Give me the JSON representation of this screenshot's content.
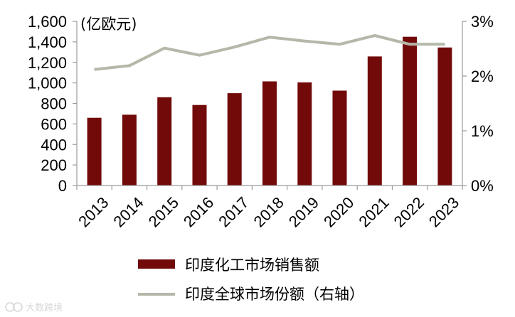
{
  "chart_data": {
    "type": "bar+line",
    "unit_label": "(亿欧元)",
    "categories": [
      "2013",
      "2014",
      "2015",
      "2016",
      "2017",
      "2018",
      "2019",
      "2020",
      "2021",
      "2022",
      "2023"
    ],
    "series": [
      {
        "name": "印度化工市场销售额",
        "type": "bar",
        "axis": "left",
        "values": [
          660,
          690,
          860,
          785,
          900,
          1015,
          1005,
          925,
          1258,
          1450,
          1345
        ]
      },
      {
        "name": "印度全球市场份额（右轴）",
        "type": "line",
        "axis": "right",
        "values": [
          2.12,
          2.19,
          2.51,
          2.38,
          2.53,
          2.71,
          2.64,
          2.58,
          2.74,
          2.58,
          2.58
        ]
      }
    ],
    "left_axis": {
      "min": 0,
      "max": 1600,
      "ticks": [
        0,
        200,
        400,
        600,
        800,
        1000,
        1200,
        1400,
        1600
      ],
      "tick_labels": [
        "0",
        "200",
        "400",
        "600",
        "800",
        "1,000",
        "1,200",
        "1,400",
        "1,600"
      ]
    },
    "right_axis": {
      "min": 0,
      "max": 3,
      "ticks": [
        0,
        1,
        2,
        3
      ],
      "tick_labels": [
        "0%",
        "1%",
        "2%",
        "3%"
      ]
    },
    "grid": false,
    "legend_position": "bottom",
    "colors": {
      "bar": "#720A0A",
      "line": "#B3B8A8",
      "axis": "#9A9A9A"
    }
  },
  "watermark": {
    "text": "大数跨境",
    "icon": "watermark-logo-icon"
  }
}
